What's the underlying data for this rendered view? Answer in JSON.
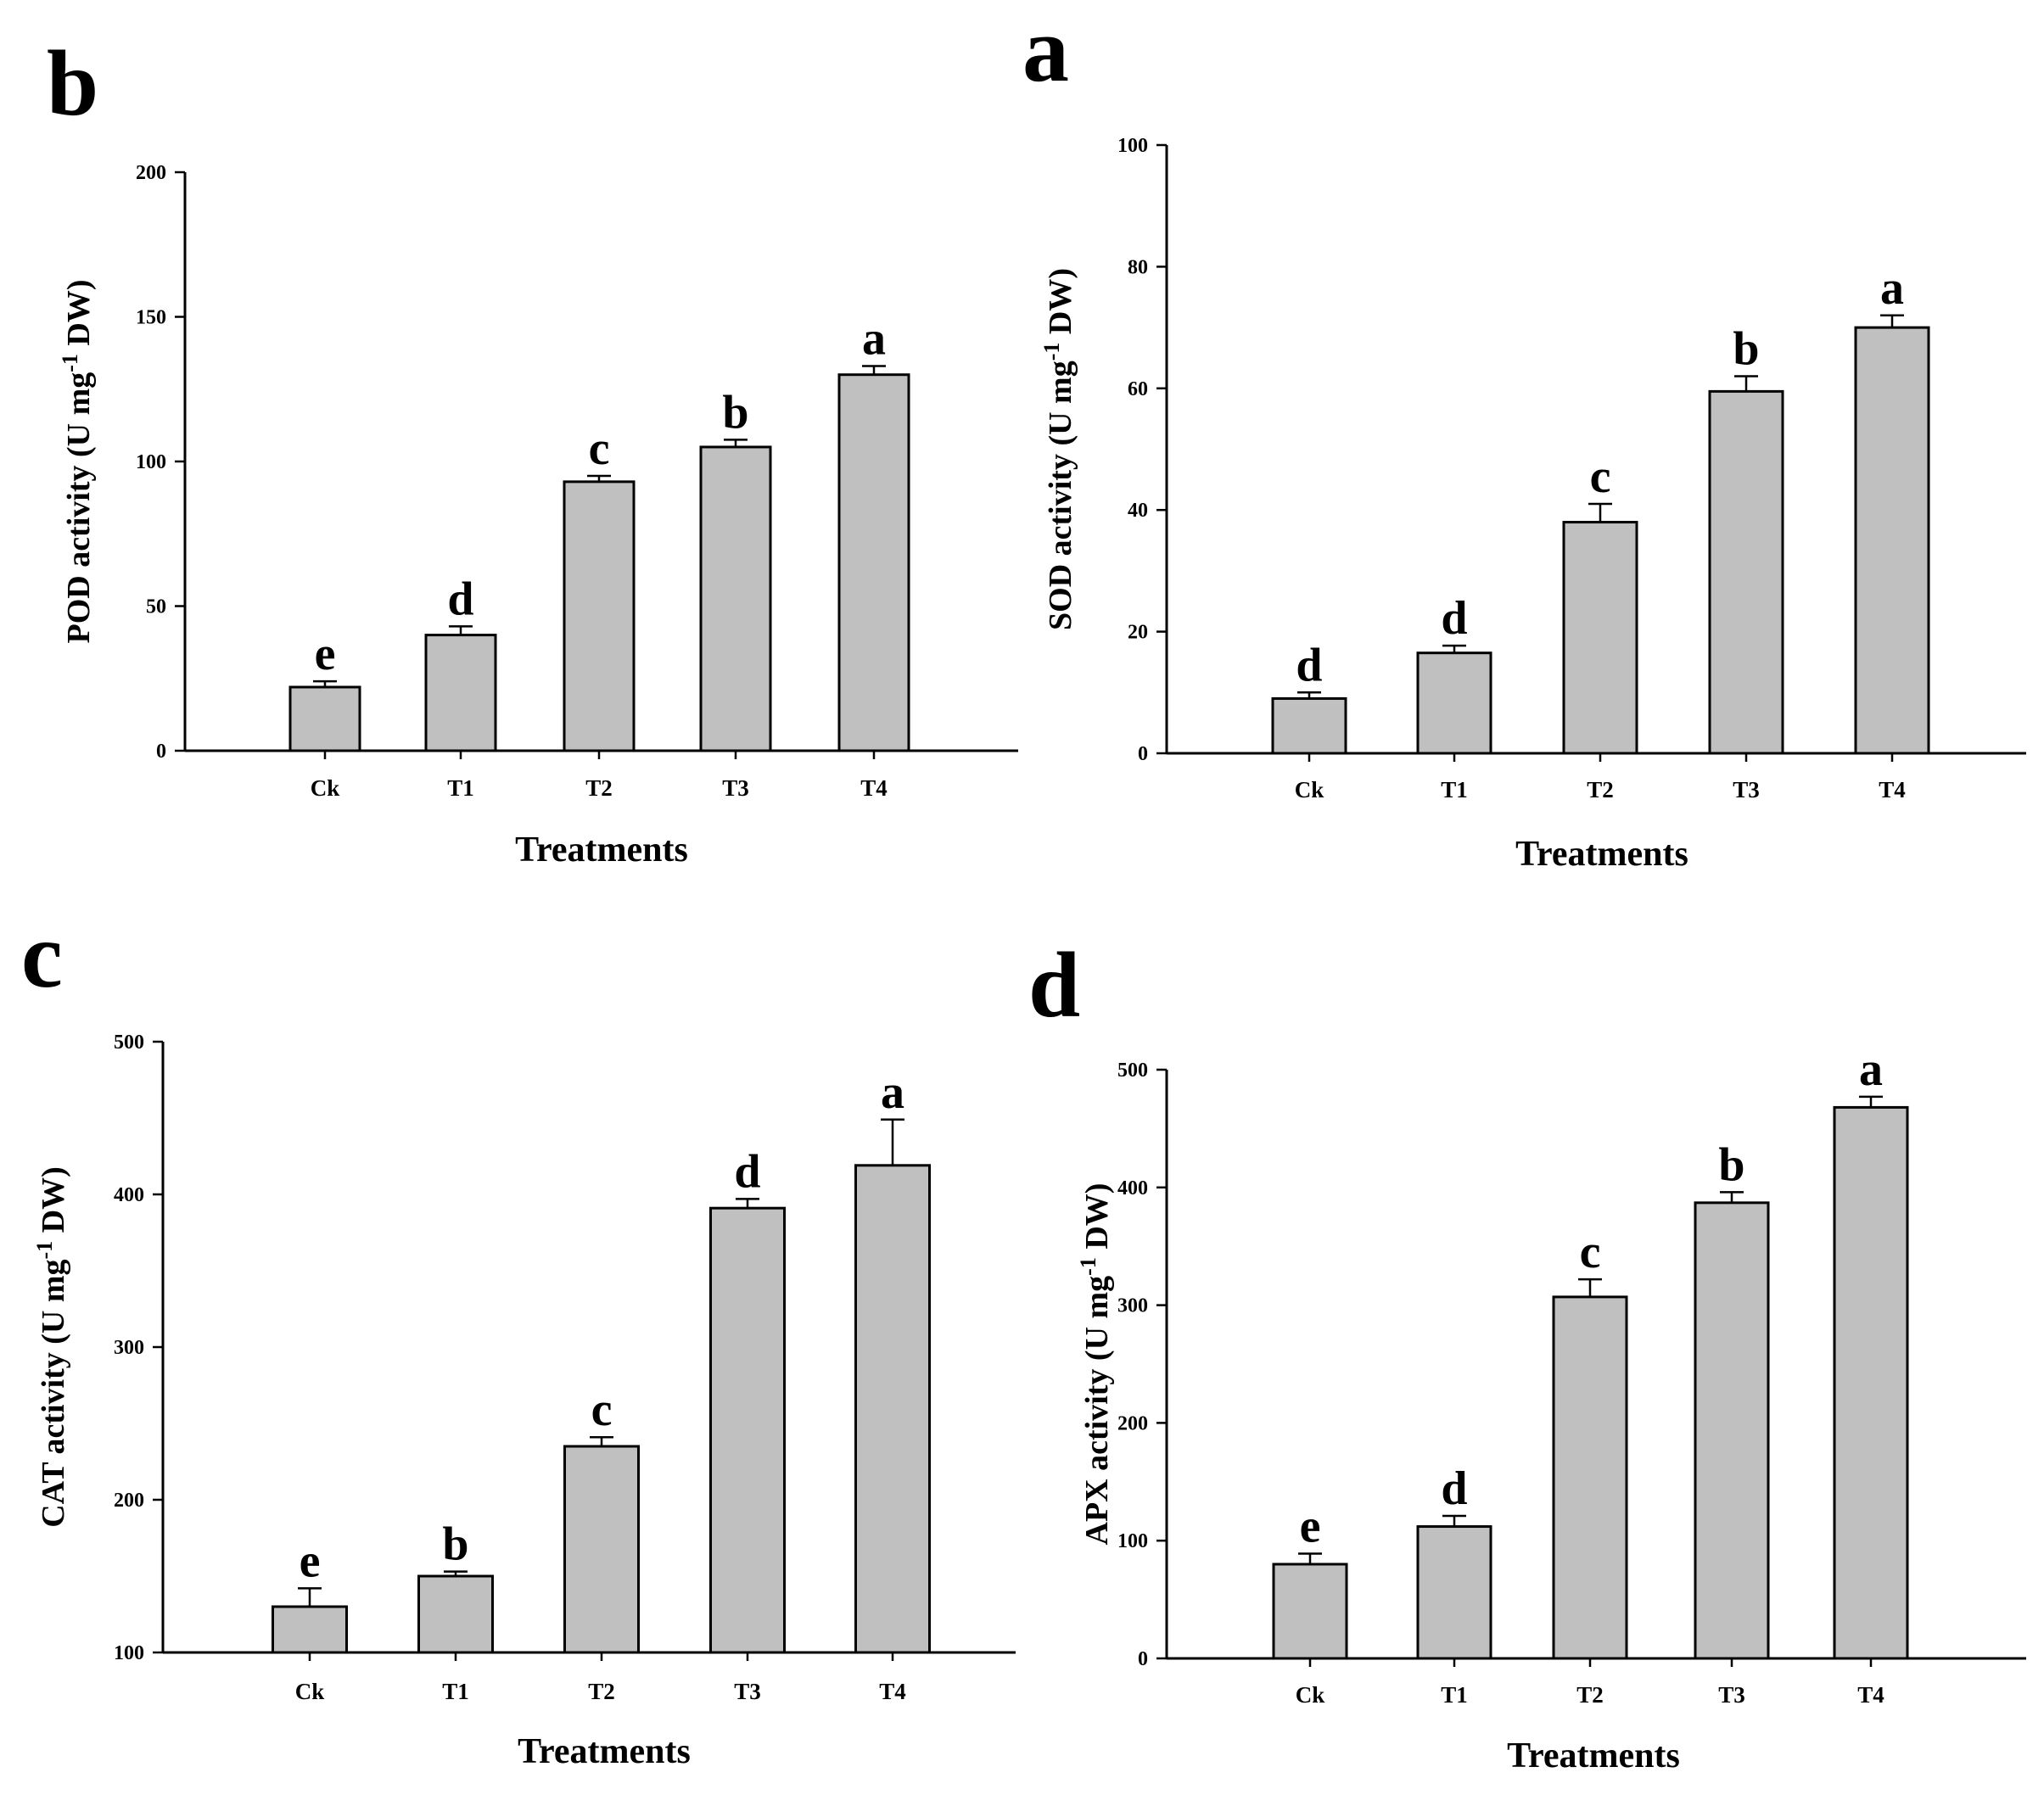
{
  "chart_data": [
    {
      "id": "pod",
      "panel_letter": "b",
      "type": "bar",
      "categories": [
        "Ck",
        "T1",
        "T2",
        "T3",
        "T4"
      ],
      "values": [
        22,
        40,
        93,
        105,
        130
      ],
      "errors": [
        2,
        3,
        2,
        2.5,
        3
      ],
      "significance": [
        "e",
        "d",
        "c",
        "b",
        "a"
      ],
      "xlabel": "Treatments",
      "ylabel_main": "POD activity (U mg",
      "ylabel_sup": "-1",
      "ylabel_tail": " DW)",
      "ylim": [
        0,
        200
      ],
      "yticks": [
        0,
        50,
        100,
        150,
        200
      ]
    },
    {
      "id": "sod",
      "panel_letter": "a",
      "type": "bar",
      "categories": [
        "Ck",
        "T1",
        "T2",
        "T3",
        "T4"
      ],
      "values": [
        9,
        16.5,
        38,
        59.5,
        70
      ],
      "errors": [
        1,
        1.2,
        3,
        2.5,
        2
      ],
      "significance": [
        "d",
        "d",
        "c",
        "b",
        "a"
      ],
      "xlabel": "Treatments",
      "ylabel_main": "SOD activity (U mg",
      "ylabel_sup": "-1",
      "ylabel_tail": " DW)",
      "ylim": [
        0,
        100
      ],
      "yticks": [
        0,
        20,
        40,
        60,
        80,
        100
      ]
    },
    {
      "id": "cat",
      "panel_letter": "c",
      "type": "bar",
      "categories": [
        "Ck",
        "T1",
        "T2",
        "T3",
        "T4"
      ],
      "values": [
        130,
        150,
        235,
        391,
        419
      ],
      "errors": [
        12,
        3,
        6,
        6,
        30
      ],
      "significance": [
        "e",
        "b",
        "c",
        "d",
        "a"
      ],
      "xlabel": "Treatments",
      "ylabel_main": "CAT activity (U mg",
      "ylabel_sup": "-1",
      "ylabel_tail": " DW)",
      "ylim": [
        100,
        500
      ],
      "yticks": [
        100,
        200,
        300,
        400,
        500
      ]
    },
    {
      "id": "apx",
      "panel_letter": "d",
      "type": "bar",
      "categories": [
        "Ck",
        "T1",
        "T2",
        "T3",
        "T4"
      ],
      "values": [
        80,
        112,
        307,
        387,
        468
      ],
      "errors": [
        9,
        9,
        15,
        9,
        9
      ],
      "significance": [
        "e",
        "d",
        "c",
        "b",
        "a"
      ],
      "xlabel": "Treatments",
      "ylabel_main": "APX activity (U mg",
      "ylabel_sup": "-1",
      "ylabel_tail": " DW)",
      "ylim": [
        0,
        500
      ],
      "yticks": [
        0,
        100,
        200,
        300,
        400,
        500
      ]
    }
  ]
}
